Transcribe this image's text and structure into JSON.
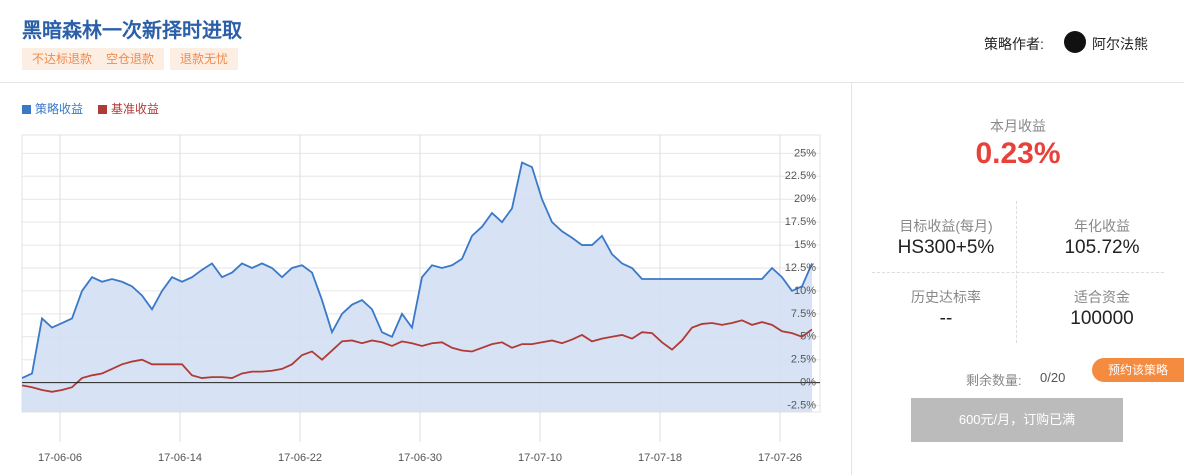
{
  "header": {
    "title": "黑暗森林一次新择时进取",
    "tags": [
      "不达标退款",
      "空仓退款",
      "退款无忧"
    ],
    "author_label": "策略作者:",
    "author_name": "阿尔法熊"
  },
  "chart_data": {
    "type": "line",
    "x": [
      0,
      0.5,
      1,
      1.5,
      2,
      2.5,
      3,
      3.5,
      4,
      4.5,
      5,
      5.5,
      6,
      6.5,
      7,
      7.5,
      8,
      8.5,
      9,
      9.5,
      10,
      10.5,
      11,
      11.5,
      12,
      12.5,
      13,
      13.5,
      14,
      14.5,
      15,
      15.5,
      16,
      16.5,
      17,
      17.5,
      18,
      18.5,
      19,
      19.5,
      20,
      20.5,
      21,
      21.5,
      22,
      22.5,
      23,
      23.5,
      24,
      24.5,
      25,
      25.5,
      26,
      26.5,
      27,
      27.5,
      28,
      28.5,
      29,
      29.5,
      30,
      30.5,
      31,
      31.5,
      32,
      32.5,
      33,
      33.5,
      34,
      34.5,
      35,
      35.5,
      36,
      36.5,
      37,
      37.5,
      38,
      38.5,
      39,
      39.5
    ],
    "series": [
      {
        "name": "策略收益",
        "color": "#3a78c8",
        "area": "#d3e0f3",
        "values": [
          0.5,
          1,
          7,
          6,
          6.5,
          7,
          10,
          11.5,
          11,
          11.3,
          11,
          10.5,
          9.5,
          8,
          10,
          11.5,
          11,
          11.5,
          12.3,
          13,
          11.5,
          12,
          13,
          12.5,
          13,
          12.5,
          11.5,
          12.5,
          12.8,
          12,
          9,
          5.5,
          7.5,
          8.5,
          9,
          8,
          5.5,
          5,
          7.5,
          6,
          11.5,
          12.8,
          12.5,
          12.8,
          13.5,
          16,
          17,
          18.5,
          17.5,
          19,
          24,
          23.5,
          20,
          17.5,
          16.5,
          15.8,
          15,
          15,
          16,
          14,
          13,
          12.5,
          11.3,
          11.3,
          11.3,
          11.3,
          11.3,
          11.3,
          11.3,
          11.3,
          11.3,
          11.3,
          11.3,
          11.3,
          11.3,
          12.5,
          11.5,
          10,
          10.5,
          13
        ]
      },
      {
        "name": "基准收益",
        "color": "#b03a36",
        "values": [
          -0.3,
          -0.5,
          -0.8,
          -1,
          -0.8,
          -0.5,
          0.5,
          0.8,
          1,
          1.5,
          2,
          2.3,
          2.5,
          2,
          2,
          2,
          2,
          0.8,
          0.5,
          0.6,
          0.6,
          0.5,
          1,
          1.2,
          1.2,
          1.3,
          1.5,
          2,
          3,
          3.4,
          2.5,
          3.5,
          4.5,
          4.6,
          4.3,
          4.6,
          4.4,
          4,
          4.5,
          4.3,
          4,
          4.3,
          4.4,
          3.8,
          3.5,
          3.4,
          3.8,
          4.2,
          4.4,
          3.8,
          4.2,
          4.2,
          4.4,
          4.6,
          4.3,
          4.7,
          5.2,
          4.5,
          4.8,
          5,
          5.2,
          4.8,
          5.5,
          5.4,
          4.4,
          3.6,
          4.6,
          6,
          6.4,
          6.5,
          6.3,
          6.5,
          6.8,
          6.3,
          6.6,
          6.3,
          5.6,
          5.4,
          5,
          5.8
        ]
      }
    ],
    "xlim": [
      0,
      39.9
    ],
    "xticks": [
      {
        "value": 1.9,
        "label": "17-06-06"
      },
      {
        "value": 7.9,
        "label": "17-06-14"
      },
      {
        "value": 13.9,
        "label": "17-06-22"
      },
      {
        "value": 19.9,
        "label": "17-06-30"
      },
      {
        "value": 25.9,
        "label": "17-07-10"
      },
      {
        "value": 31.9,
        "label": "17-07-18"
      },
      {
        "value": 37.9,
        "label": "17-07-26"
      }
    ],
    "ylim": [
      -3.2,
      27
    ],
    "yticks": [
      {
        "value": -2.5,
        "label": "-2.5%"
      },
      {
        "value": 0,
        "label": "0%"
      },
      {
        "value": 2.5,
        "label": "2.5%"
      },
      {
        "value": 5,
        "label": "5%"
      },
      {
        "value": 7.5,
        "label": "7.5%"
      },
      {
        "value": 10,
        "label": "10%"
      },
      {
        "value": 12.5,
        "label": "12.5%"
      },
      {
        "value": 15,
        "label": "15%"
      },
      {
        "value": 17.5,
        "label": "17.5%"
      },
      {
        "value": 20,
        "label": "20%"
      },
      {
        "value": 22.5,
        "label": "22.5%"
      },
      {
        "value": 25,
        "label": "25%"
      }
    ],
    "grid": true
  },
  "panel": {
    "month_label": "本月收益",
    "month_value": "0.23%",
    "stats": [
      {
        "label": "目标收益(每月)",
        "value": "HS300+5%"
      },
      {
        "label": "年化收益",
        "value": "105.72%"
      },
      {
        "label": "历史达标率",
        "value": "--"
      },
      {
        "label": "适合资金",
        "value": "100000"
      }
    ],
    "badge": "预约该策略",
    "remaining_label": "剩余数量:",
    "remaining_value": "0/20",
    "button": "600元/月，订购已满"
  }
}
